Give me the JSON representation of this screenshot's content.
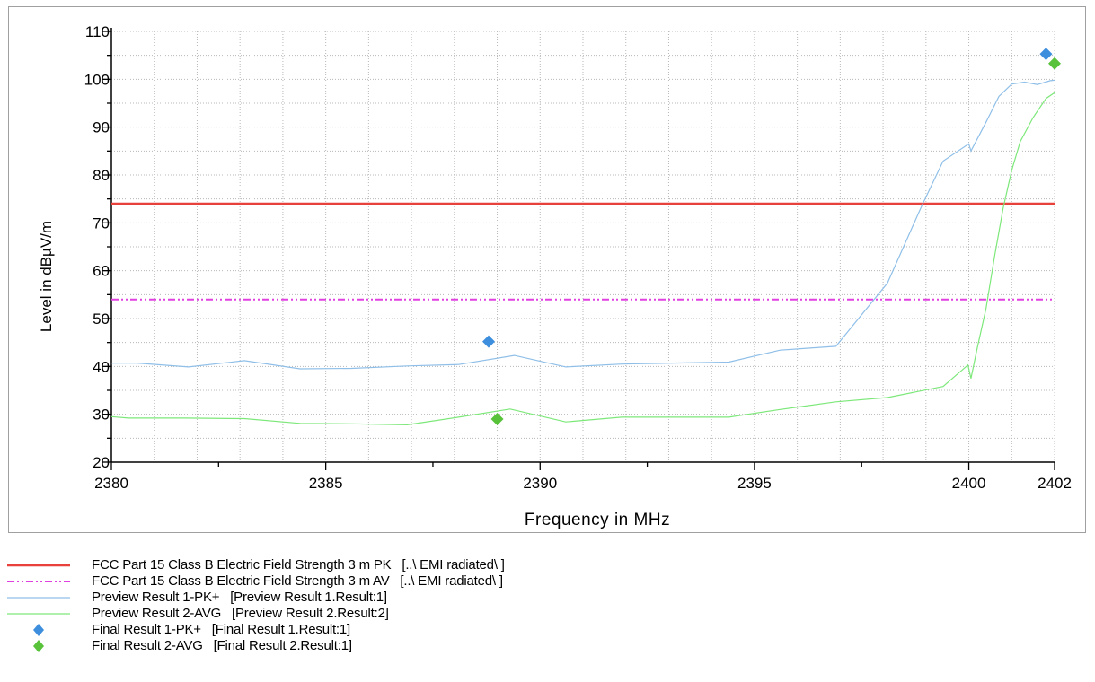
{
  "chart_data": {
    "type": "line",
    "xlabel": "Frequency in MHz",
    "ylabel": "Level in dBµV/m",
    "xlim": [
      2380,
      2402
    ],
    "ylim": [
      20,
      110
    ],
    "x_ticks": [
      2380,
      2385,
      2390,
      2395,
      2400,
      2402
    ],
    "x_tick_labels": [
      "2380",
      "2385",
      "2390",
      "2395",
      "2400",
      "2402"
    ],
    "y_ticks": [
      20,
      30,
      40,
      50,
      60,
      70,
      80,
      90,
      100,
      110
    ],
    "y_tick_labels": [
      "20",
      "30",
      "40",
      "50",
      "60",
      "70",
      "80",
      "90",
      "100",
      "110"
    ],
    "grid": true,
    "legend_position": "bottom",
    "series": [
      {
        "name": "FCC Part 15 Class B Electric Field Strength 3 m PK",
        "source": "[..\\ EMI radiated\\ ]",
        "style": "solid",
        "color": "#e8413b",
        "x": [
          2380,
          2402
        ],
        "y": [
          74,
          74
        ]
      },
      {
        "name": "FCC Part 15 Class B Electric Field Strength 3 m AV",
        "source": "[..\\ EMI radiated\\ ]",
        "style": "dashdotdot",
        "color": "#e040e0",
        "x": [
          2380,
          2402
        ],
        "y": [
          54,
          54
        ]
      },
      {
        "name": "Preview Result 1-PK+",
        "source": "[Preview Result 1.Result:1]",
        "style": "thin",
        "color": "#8fbfe8",
        "x": [
          2380,
          2380.6,
          2381.8,
          2383.1,
          2384.4,
          2385.6,
          2386.9,
          2388.1,
          2389.4,
          2390.6,
          2391.9,
          2393.1,
          2394.4,
          2395.6,
          2396.9,
          2398.1,
          2398.9,
          2399.4,
          2400.0,
          2400.05,
          2400.4,
          2400.7,
          2401.0,
          2401.3,
          2401.6,
          2401.9,
          2402.0
        ],
        "y": [
          40.7,
          40.7,
          39.9,
          41.2,
          39.5,
          39.6,
          40.1,
          40.4,
          42.3,
          39.9,
          40.5,
          40.7,
          40.9,
          43.4,
          44.2,
          57.4,
          73.5,
          82.9,
          86.5,
          85.0,
          91.0,
          96.4,
          99.0,
          99.4,
          98.9,
          99.7,
          99.8
        ]
      },
      {
        "name": "Preview Result 2-AVG",
        "source": "[Preview Result 2.Result:2]",
        "style": "thin",
        "color": "#7de87a",
        "x": [
          2380,
          2380.4,
          2381.7,
          2383.1,
          2384.4,
          2385.6,
          2386.9,
          2388.1,
          2389.3,
          2390.6,
          2391.9,
          2393.1,
          2394.4,
          2395.6,
          2396.9,
          2398.1,
          2399.4,
          2399.98,
          2400.05,
          2400.2,
          2400.4,
          2400.6,
          2400.8,
          2401.0,
          2401.2,
          2401.5,
          2401.8,
          2402.0
        ],
        "y": [
          29.5,
          29.2,
          29.2,
          29.1,
          28.1,
          28.0,
          27.8,
          29.4,
          31.1,
          28.4,
          29.4,
          29.4,
          29.4,
          31.0,
          32.6,
          33.5,
          35.8,
          40.3,
          37.5,
          44.0,
          52.0,
          63.0,
          73.0,
          81.0,
          87.0,
          92.0,
          96.0,
          97.2
        ]
      },
      {
        "name": "Final Result 1-PK+",
        "source": "[Final Result 1.Result:1]",
        "style": "diamond",
        "color": "#3d8fde",
        "x": [
          2388.8,
          2401.8
        ],
        "y": [
          45.2,
          105.3
        ]
      },
      {
        "name": "Final Result 2-AVG",
        "source": "[Final Result 2.Result:1]",
        "style": "diamond",
        "color": "#58c23a",
        "x": [
          2389.0,
          2402.0
        ],
        "y": [
          29.0,
          103.3
        ]
      }
    ]
  },
  "legend": {
    "items": [
      {
        "label": "FCC Part 15 Class B Electric Field Strength 3 m PK   [..\\ EMI radiated\\ ]"
      },
      {
        "label": "FCC Part 15 Class B Electric Field Strength 3 m AV   [..\\ EMI radiated\\ ]"
      },
      {
        "label": "Preview Result 1-PK+   [Preview Result 1.Result:1]"
      },
      {
        "label": "Preview Result 2-AVG   [Preview Result 2.Result:2]"
      },
      {
        "label": "Final Result 1-PK+   [Final Result 1.Result:1]"
      },
      {
        "label": "Final Result 2-AVG   [Final Result 2.Result:1]"
      }
    ]
  }
}
